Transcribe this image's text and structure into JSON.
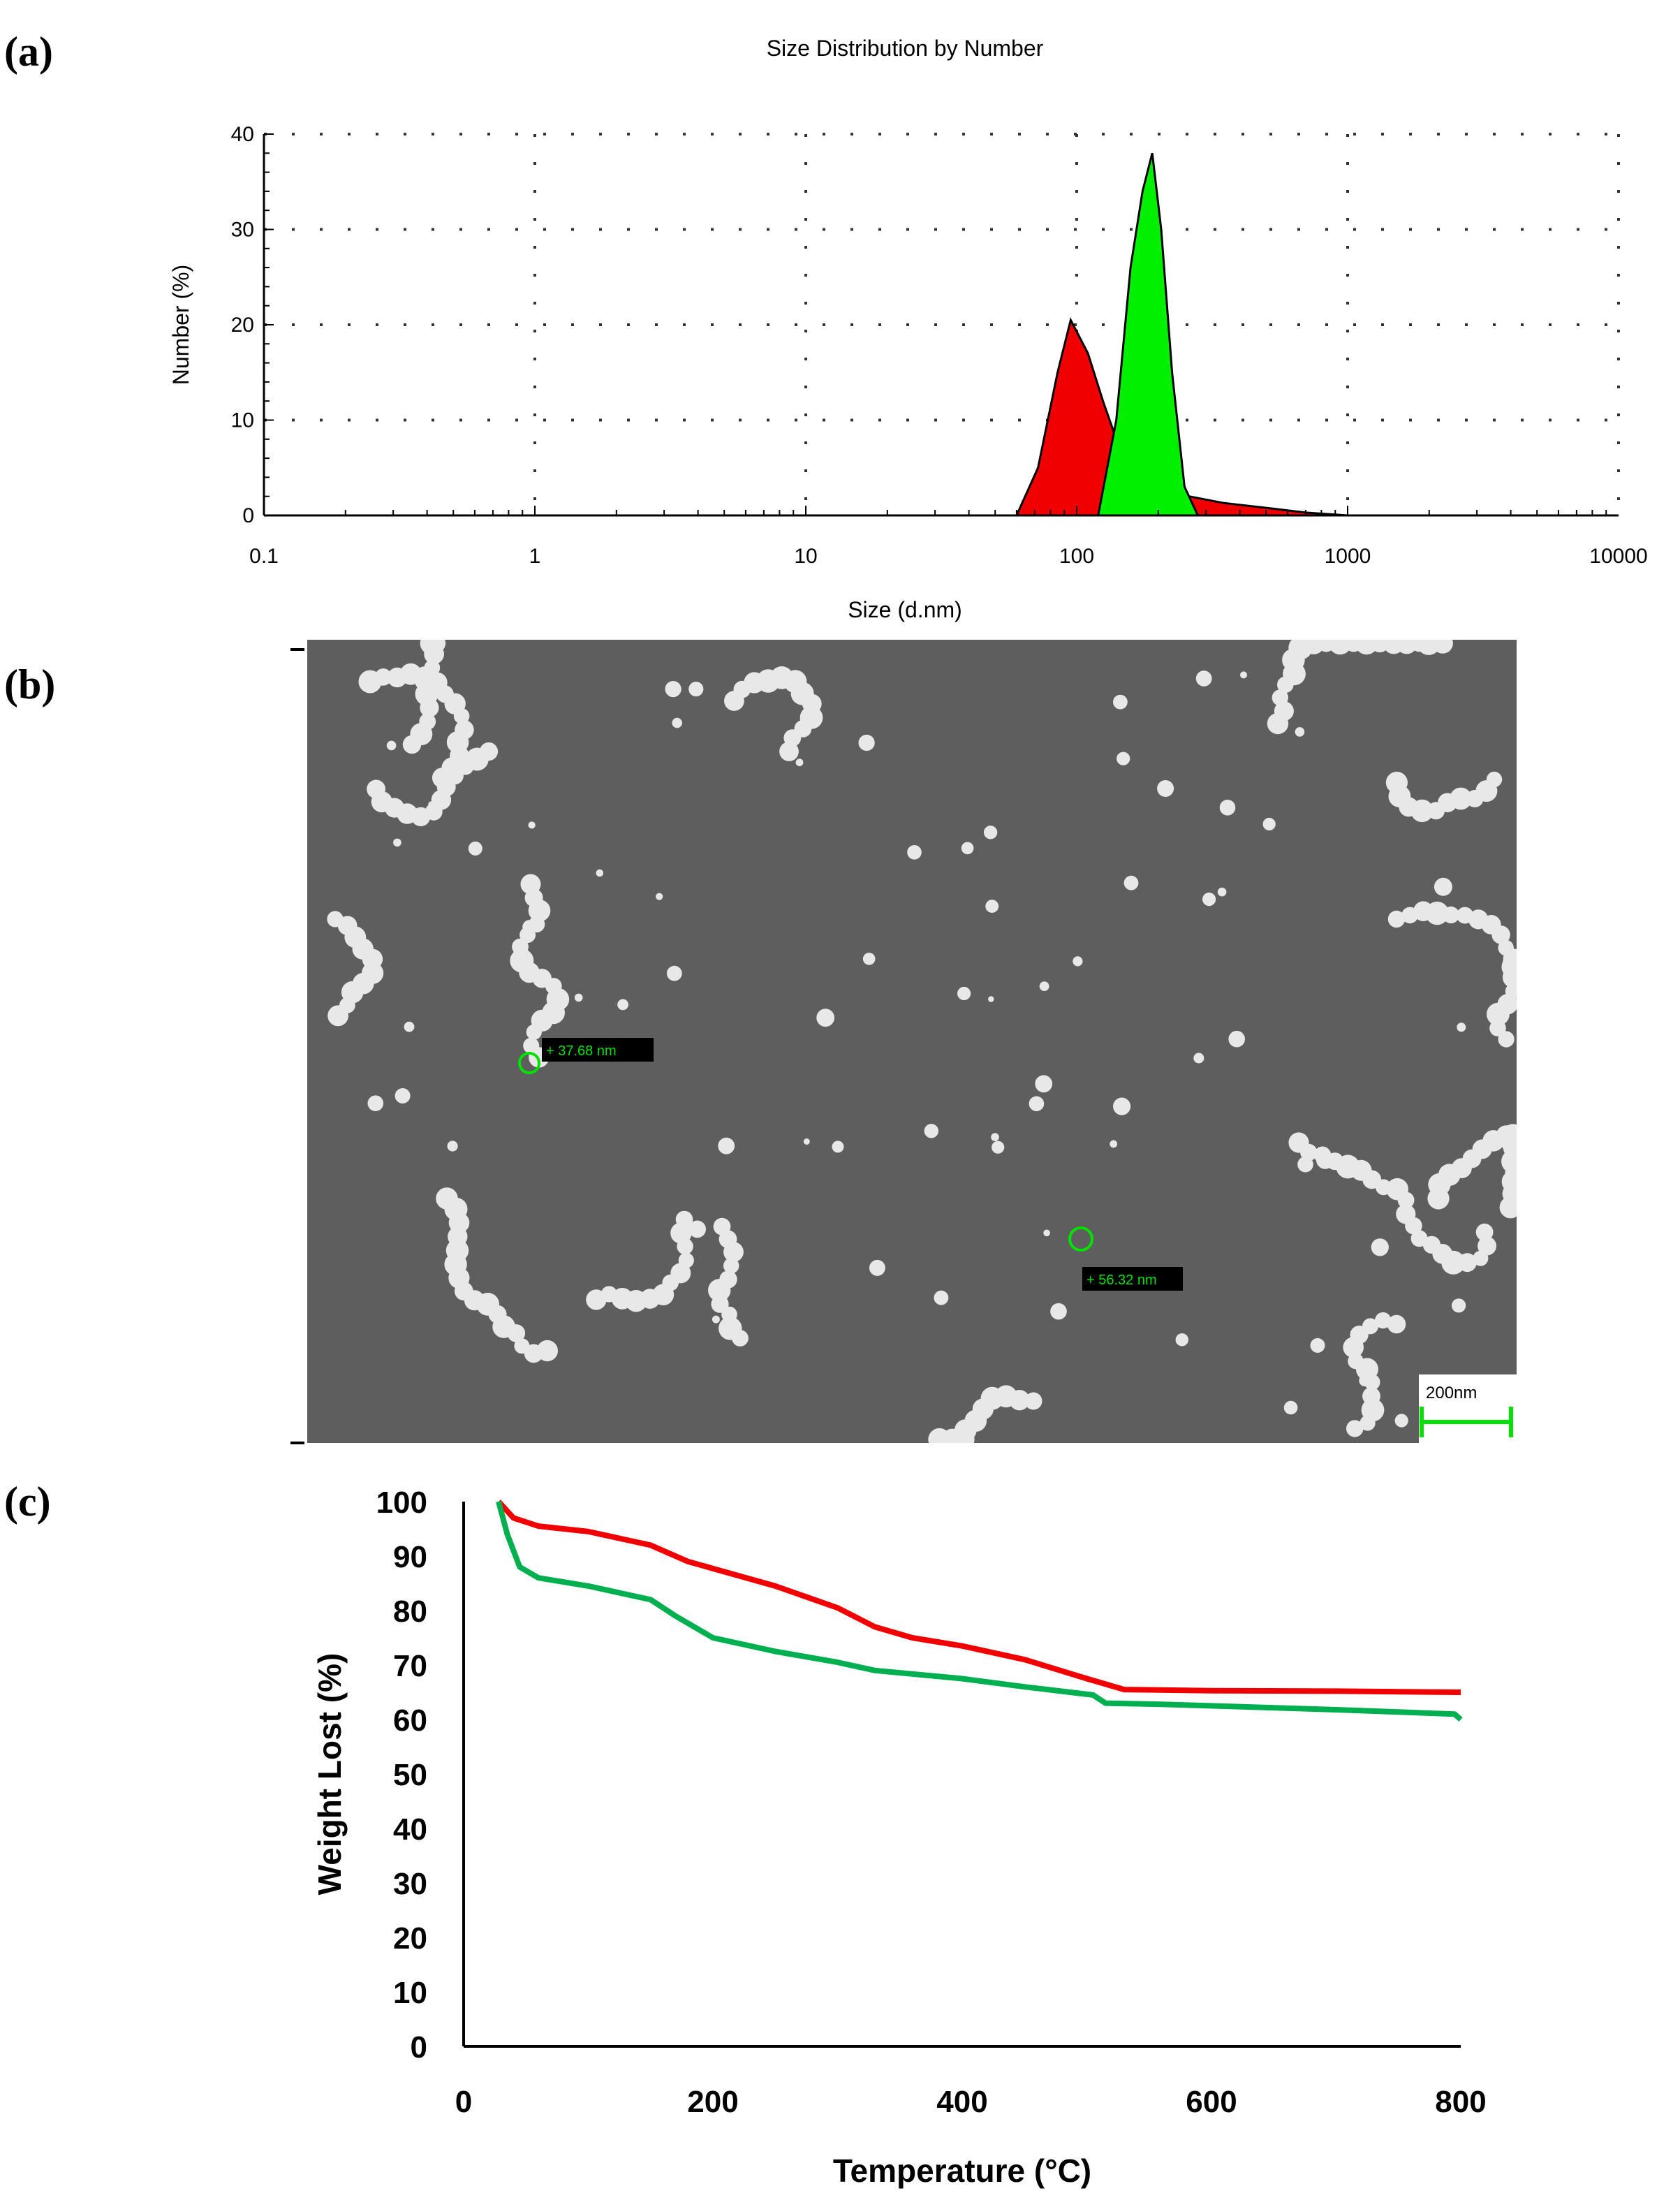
{
  "panels": {
    "a": "(a)",
    "b": "(b)",
    "c": "(c)"
  },
  "colors": {
    "red": "#f00000",
    "green": "#00f000",
    "green_dark": "#00b050",
    "sem_bg": "#5e5e5e",
    "sem_particle": "#e8e8e8"
  },
  "chart_data": [
    {
      "type": "area",
      "title": "Size Distribution by Number",
      "xlabel": "Size (d.nm)",
      "ylabel": "Number (%)",
      "xscale": "log",
      "xlim": [
        0.1,
        10000
      ],
      "ylim": [
        0,
        40
      ],
      "xticks": [
        "0.1",
        "1",
        "10",
        "100",
        "1000",
        "10000"
      ],
      "yticks": [
        "0",
        "10",
        "20",
        "30",
        "40"
      ],
      "grid": "dotted",
      "series": [
        {
          "color": "#f00000",
          "points": [
            [
              60,
              0
            ],
            [
              72,
              5
            ],
            [
              85,
              15
            ],
            [
              95,
              20.5
            ],
            [
              110,
              17
            ],
            [
              125,
              12
            ],
            [
              140,
              8
            ],
            [
              165,
              5
            ],
            [
              200,
              3.2
            ],
            [
              260,
              2
            ],
            [
              350,
              1.3
            ],
            [
              500,
              0.8
            ],
            [
              700,
              0.3
            ],
            [
              1000,
              0
            ]
          ]
        },
        {
          "color": "#00f000",
          "points": [
            [
              120,
              0
            ],
            [
              140,
              10
            ],
            [
              158,
              26
            ],
            [
              175,
              34
            ],
            [
              190,
              38
            ],
            [
              205,
              30
            ],
            [
              225,
              15
            ],
            [
              250,
              3
            ],
            [
              280,
              0
            ]
          ]
        }
      ]
    },
    {
      "type": "image",
      "annotations": [
        "+ 37.68 nm",
        "+ 56.32 nm"
      ],
      "scale_bar": "200nm"
    },
    {
      "type": "line",
      "xlabel": "Temperature (°C)",
      "ylabel": "Weight Lost (%)",
      "xlim": [
        0,
        800
      ],
      "ylim": [
        0,
        100
      ],
      "xticks": [
        "0",
        "200",
        "400",
        "600",
        "800"
      ],
      "yticks": [
        "0",
        "10",
        "20",
        "30",
        "40",
        "50",
        "60",
        "70",
        "80",
        "90",
        "100"
      ],
      "series": [
        {
          "color": "#f00000",
          "points": [
            [
              28,
              100
            ],
            [
              40,
              97
            ],
            [
              60,
              95.5
            ],
            [
              100,
              94.5
            ],
            [
              150,
              92
            ],
            [
              180,
              89
            ],
            [
              250,
              84.5
            ],
            [
              300,
              80.5
            ],
            [
              330,
              77
            ],
            [
              360,
              75
            ],
            [
              400,
              73.5
            ],
            [
              450,
              71
            ],
            [
              500,
              67.5
            ],
            [
              530,
              65.5
            ],
            [
              600,
              65.3
            ],
            [
              700,
              65.2
            ],
            [
              800,
              65
            ]
          ]
        },
        {
          "color": "#00b050",
          "points": [
            [
              28,
              100
            ],
            [
              35,
              94
            ],
            [
              45,
              88
            ],
            [
              60,
              86
            ],
            [
              100,
              84.5
            ],
            [
              150,
              82
            ],
            [
              170,
              79
            ],
            [
              200,
              75
            ],
            [
              250,
              72.5
            ],
            [
              300,
              70.5
            ],
            [
              330,
              69
            ],
            [
              400,
              67.5
            ],
            [
              450,
              66
            ],
            [
              505,
              64.5
            ],
            [
              515,
              63
            ],
            [
              560,
              62.8
            ],
            [
              700,
              61.8
            ],
            [
              795,
              61
            ],
            [
              800,
              60
            ]
          ]
        }
      ]
    }
  ]
}
